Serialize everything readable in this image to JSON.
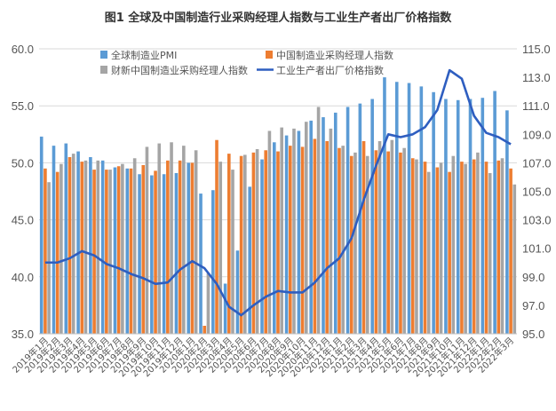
{
  "chart_data": {
    "type": "bar",
    "title": "图1 全球及中国制造行业采购经理人指数与工业生产者出厂价格指数",
    "categories": [
      "2019年1月",
      "2019年2月",
      "2019年3月",
      "2019年4月",
      "2019年5月",
      "2019年6月",
      "2019年7月",
      "2019年8月",
      "2019年9月",
      "2019年10月",
      "2019年11月",
      "2019年12月",
      "2020年1月",
      "2020年2月",
      "2020年3月",
      "2020年4月",
      "2020年5月",
      "2020年6月",
      "2020年7月",
      "2020年8月",
      "2020年9月",
      "2020年10月",
      "2020年11月",
      "2020年12月",
      "2021年1月",
      "2021年2月",
      "2021年3月",
      "2021年4月",
      "2021年5月",
      "2021年6月",
      "2021年7月",
      "2021年8月",
      "2021年9月",
      "2021年10月",
      "2021年11月",
      "2021年12月",
      "2022年1月",
      "2022年2月",
      "2022年3月"
    ],
    "xlabel": "",
    "ylabel": "",
    "ylim": [
      35,
      60
    ],
    "y2lim": [
      95,
      115
    ],
    "yticks": [
      "35.0",
      "40.0",
      "45.0",
      "50.0",
      "55.0",
      "60.0"
    ],
    "y2ticks": [
      "95.0",
      "97.0",
      "99.0",
      "101.0",
      "103.0",
      "105.0",
      "107.0",
      "109.0",
      "111.0",
      "113.0",
      "115.0"
    ],
    "legend_position": "top",
    "series": [
      {
        "name": "全球制造业PMI",
        "kind": "bar",
        "axis": "left",
        "color": "#5b9bd5",
        "values": [
          52.3,
          51.5,
          51.7,
          51.0,
          50.5,
          50.2,
          49.6,
          49.5,
          49.0,
          48.9,
          49.0,
          49.1,
          50.0,
          47.3,
          47.6,
          39.4,
          42.3,
          47.9,
          50.3,
          51.8,
          52.4,
          52.8,
          53.7,
          54.0,
          54.4,
          54.9,
          55.2,
          55.6,
          57.5,
          57.1,
          57.0,
          56.7,
          56.2,
          55.6,
          55.5,
          55.6,
          55.7,
          56.3,
          54.6
        ]
      },
      {
        "name": "中国制造业采购经理人指数",
        "kind": "bar",
        "axis": "left",
        "color": "#ed7d31",
        "values": [
          49.5,
          49.2,
          50.5,
          50.1,
          49.4,
          49.4,
          49.7,
          49.5,
          49.8,
          49.3,
          50.2,
          50.2,
          50.0,
          35.7,
          52.0,
          50.8,
          50.6,
          50.9,
          51.1,
          51.0,
          51.5,
          51.4,
          52.1,
          51.9,
          51.3,
          50.6,
          51.9,
          51.1,
          51.0,
          50.9,
          50.4,
          50.1,
          49.6,
          49.2,
          50.1,
          50.3,
          50.1,
          50.2,
          49.5
        ]
      },
      {
        "name": "财新中国制造业采购经理人指数",
        "kind": "bar",
        "axis": "left",
        "color": "#a5a5a5",
        "values": [
          48.3,
          49.9,
          50.8,
          50.2,
          50.2,
          49.4,
          49.9,
          50.4,
          51.4,
          51.7,
          51.8,
          51.5,
          51.1,
          40.3,
          50.1,
          49.4,
          50.7,
          51.2,
          52.8,
          53.1,
          53.0,
          53.6,
          54.9,
          53.0,
          51.5,
          50.9,
          50.6,
          51.9,
          52.0,
          51.3,
          50.3,
          49.2,
          50.0,
          50.6,
          49.9,
          50.9,
          49.1,
          50.4,
          48.1
        ]
      },
      {
        "name": "工业生产者出厂价格指数",
        "kind": "line",
        "axis": "right",
        "color": "#2e5ec0",
        "values": [
          100.0,
          100.0,
          100.3,
          100.8,
          100.5,
          99.9,
          99.6,
          99.2,
          98.9,
          98.5,
          98.6,
          99.5,
          100.1,
          99.6,
          98.5,
          96.9,
          96.3,
          97.0,
          97.6,
          98.0,
          97.9,
          97.9,
          98.6,
          99.6,
          100.3,
          101.7,
          104.4,
          106.8,
          109.0,
          108.8,
          109.0,
          109.5,
          110.7,
          113.5,
          112.9,
          110.3,
          109.1,
          108.8,
          108.3
        ]
      }
    ]
  }
}
